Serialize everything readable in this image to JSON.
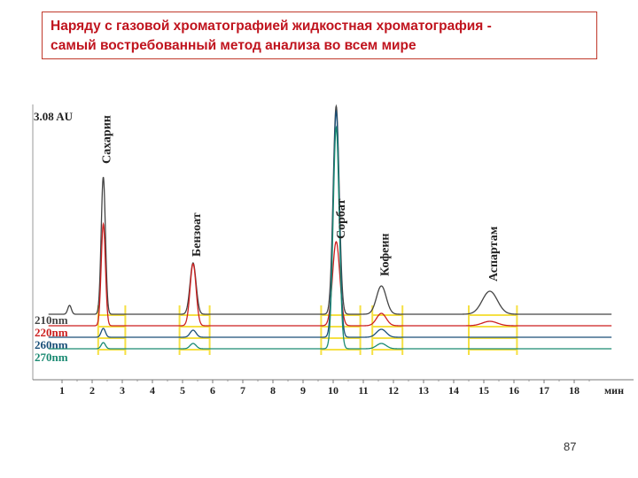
{
  "slide": {
    "title_line1": "Наряду с газовой хроматографией жидкостная хроматография -",
    "title_line2": "самый востребованный метод анализа во всем мире",
    "page_number": "87"
  },
  "chart_data": {
    "type": "line",
    "xlabel": "мин",
    "ylabel": "",
    "scale_label": "3.08 AU",
    "xlim": [
      0.5,
      19.3
    ],
    "x_ticks": [
      1,
      2,
      3,
      4,
      5,
      6,
      7,
      8,
      9,
      10,
      11,
      12,
      13,
      14,
      15,
      16,
      17,
      18
    ],
    "series": [
      {
        "name": "210nm",
        "color": "#444444",
        "peaks": [
          {
            "rt": 1.25,
            "h": 10,
            "w": 0.06
          },
          {
            "rt": 2.37,
            "h": 155,
            "w": 0.07
          },
          {
            "rt": 5.35,
            "h": 58,
            "w": 0.1
          },
          {
            "rt": 10.1,
            "h": 235,
            "w": 0.1
          },
          {
            "rt": 11.6,
            "h": 32,
            "w": 0.16
          },
          {
            "rt": 15.2,
            "h": 26,
            "w": 0.25
          }
        ]
      },
      {
        "name": "220nm",
        "color": "#cc1f1f",
        "peaks": [
          {
            "rt": 2.37,
            "h": 115,
            "w": 0.07
          },
          {
            "rt": 5.35,
            "h": 70,
            "w": 0.1
          },
          {
            "rt": 10.1,
            "h": 95,
            "w": 0.12
          },
          {
            "rt": 11.6,
            "h": 14,
            "w": 0.16
          },
          {
            "rt": 15.2,
            "h": 5,
            "w": 0.25
          }
        ]
      },
      {
        "name": "260nm",
        "color": "#1a4f78",
        "peaks": [
          {
            "rt": 2.37,
            "h": 10,
            "w": 0.07
          },
          {
            "rt": 5.35,
            "h": 8,
            "w": 0.1
          },
          {
            "rt": 10.1,
            "h": 255,
            "w": 0.1
          },
          {
            "rt": 11.6,
            "h": 9,
            "w": 0.16
          }
        ]
      },
      {
        "name": "270nm",
        "color": "#1a8a72",
        "peaks": [
          {
            "rt": 2.37,
            "h": 7,
            "w": 0.07
          },
          {
            "rt": 5.35,
            "h": 6,
            "w": 0.1
          },
          {
            "rt": 10.1,
            "h": 250,
            "w": 0.1
          },
          {
            "rt": 11.6,
            "h": 6,
            "w": 0.16
          }
        ]
      }
    ],
    "peak_labels": [
      {
        "text": "Сахарин",
        "rt": 2.37
      },
      {
        "text": "Бензоат",
        "rt": 5.35
      },
      {
        "text": "Сорбат",
        "rt": 10.15
      },
      {
        "text": "Кофеин",
        "rt": 11.6
      },
      {
        "text": "Аспартам",
        "rt": 15.2
      }
    ],
    "integration_windows": [
      [
        2.2,
        3.1
      ],
      [
        4.9,
        5.9
      ],
      [
        9.6,
        10.9
      ],
      [
        11.3,
        12.3
      ],
      [
        14.5,
        16.1
      ]
    ],
    "grid": false,
    "legend": "left"
  }
}
